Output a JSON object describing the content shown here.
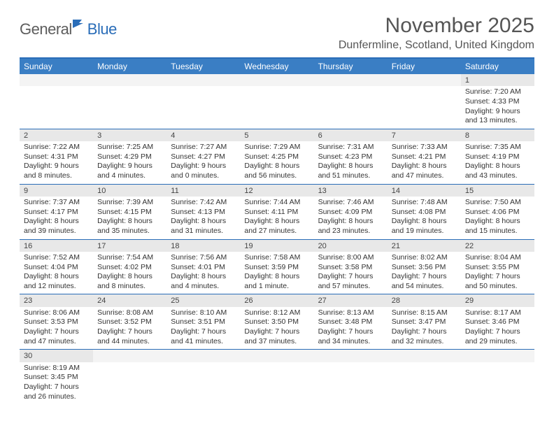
{
  "logo": {
    "part1": "General",
    "part2": "Blue"
  },
  "title": "November 2025",
  "location": "Dunfermline, Scotland, United Kingdom",
  "colors": {
    "header_bg": "#3a7ec4",
    "header_text": "#ffffff",
    "border": "#2a6db8",
    "daynum_bg": "#e8e8e8",
    "empty_bg": "#f4f4f4",
    "text": "#333333",
    "logo_gray": "#5d5d5d",
    "logo_blue": "#2a6db8"
  },
  "day_headers": [
    "Sunday",
    "Monday",
    "Tuesday",
    "Wednesday",
    "Thursday",
    "Friday",
    "Saturday"
  ],
  "weeks": [
    [
      {
        "n": "",
        "c": ""
      },
      {
        "n": "",
        "c": ""
      },
      {
        "n": "",
        "c": ""
      },
      {
        "n": "",
        "c": ""
      },
      {
        "n": "",
        "c": ""
      },
      {
        "n": "",
        "c": ""
      },
      {
        "n": "1",
        "c": "Sunrise: 7:20 AM\nSunset: 4:33 PM\nDaylight: 9 hours and 13 minutes."
      }
    ],
    [
      {
        "n": "2",
        "c": "Sunrise: 7:22 AM\nSunset: 4:31 PM\nDaylight: 9 hours and 8 minutes."
      },
      {
        "n": "3",
        "c": "Sunrise: 7:25 AM\nSunset: 4:29 PM\nDaylight: 9 hours and 4 minutes."
      },
      {
        "n": "4",
        "c": "Sunrise: 7:27 AM\nSunset: 4:27 PM\nDaylight: 9 hours and 0 minutes."
      },
      {
        "n": "5",
        "c": "Sunrise: 7:29 AM\nSunset: 4:25 PM\nDaylight: 8 hours and 56 minutes."
      },
      {
        "n": "6",
        "c": "Sunrise: 7:31 AM\nSunset: 4:23 PM\nDaylight: 8 hours and 51 minutes."
      },
      {
        "n": "7",
        "c": "Sunrise: 7:33 AM\nSunset: 4:21 PM\nDaylight: 8 hours and 47 minutes."
      },
      {
        "n": "8",
        "c": "Sunrise: 7:35 AM\nSunset: 4:19 PM\nDaylight: 8 hours and 43 minutes."
      }
    ],
    [
      {
        "n": "9",
        "c": "Sunrise: 7:37 AM\nSunset: 4:17 PM\nDaylight: 8 hours and 39 minutes."
      },
      {
        "n": "10",
        "c": "Sunrise: 7:39 AM\nSunset: 4:15 PM\nDaylight: 8 hours and 35 minutes."
      },
      {
        "n": "11",
        "c": "Sunrise: 7:42 AM\nSunset: 4:13 PM\nDaylight: 8 hours and 31 minutes."
      },
      {
        "n": "12",
        "c": "Sunrise: 7:44 AM\nSunset: 4:11 PM\nDaylight: 8 hours and 27 minutes."
      },
      {
        "n": "13",
        "c": "Sunrise: 7:46 AM\nSunset: 4:09 PM\nDaylight: 8 hours and 23 minutes."
      },
      {
        "n": "14",
        "c": "Sunrise: 7:48 AM\nSunset: 4:08 PM\nDaylight: 8 hours and 19 minutes."
      },
      {
        "n": "15",
        "c": "Sunrise: 7:50 AM\nSunset: 4:06 PM\nDaylight: 8 hours and 15 minutes."
      }
    ],
    [
      {
        "n": "16",
        "c": "Sunrise: 7:52 AM\nSunset: 4:04 PM\nDaylight: 8 hours and 12 minutes."
      },
      {
        "n": "17",
        "c": "Sunrise: 7:54 AM\nSunset: 4:02 PM\nDaylight: 8 hours and 8 minutes."
      },
      {
        "n": "18",
        "c": "Sunrise: 7:56 AM\nSunset: 4:01 PM\nDaylight: 8 hours and 4 minutes."
      },
      {
        "n": "19",
        "c": "Sunrise: 7:58 AM\nSunset: 3:59 PM\nDaylight: 8 hours and 1 minute."
      },
      {
        "n": "20",
        "c": "Sunrise: 8:00 AM\nSunset: 3:58 PM\nDaylight: 7 hours and 57 minutes."
      },
      {
        "n": "21",
        "c": "Sunrise: 8:02 AM\nSunset: 3:56 PM\nDaylight: 7 hours and 54 minutes."
      },
      {
        "n": "22",
        "c": "Sunrise: 8:04 AM\nSunset: 3:55 PM\nDaylight: 7 hours and 50 minutes."
      }
    ],
    [
      {
        "n": "23",
        "c": "Sunrise: 8:06 AM\nSunset: 3:53 PM\nDaylight: 7 hours and 47 minutes."
      },
      {
        "n": "24",
        "c": "Sunrise: 8:08 AM\nSunset: 3:52 PM\nDaylight: 7 hours and 44 minutes."
      },
      {
        "n": "25",
        "c": "Sunrise: 8:10 AM\nSunset: 3:51 PM\nDaylight: 7 hours and 41 minutes."
      },
      {
        "n": "26",
        "c": "Sunrise: 8:12 AM\nSunset: 3:50 PM\nDaylight: 7 hours and 37 minutes."
      },
      {
        "n": "27",
        "c": "Sunrise: 8:13 AM\nSunset: 3:48 PM\nDaylight: 7 hours and 34 minutes."
      },
      {
        "n": "28",
        "c": "Sunrise: 8:15 AM\nSunset: 3:47 PM\nDaylight: 7 hours and 32 minutes."
      },
      {
        "n": "29",
        "c": "Sunrise: 8:17 AM\nSunset: 3:46 PM\nDaylight: 7 hours and 29 minutes."
      }
    ],
    [
      {
        "n": "30",
        "c": "Sunrise: 8:19 AM\nSunset: 3:45 PM\nDaylight: 7 hours and 26 minutes."
      },
      {
        "n": "",
        "c": ""
      },
      {
        "n": "",
        "c": ""
      },
      {
        "n": "",
        "c": ""
      },
      {
        "n": "",
        "c": ""
      },
      {
        "n": "",
        "c": ""
      },
      {
        "n": "",
        "c": ""
      }
    ]
  ]
}
